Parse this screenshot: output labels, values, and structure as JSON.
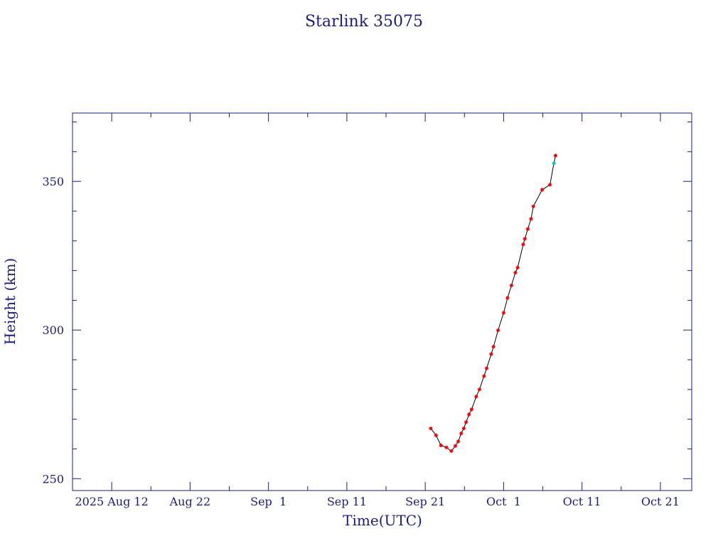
{
  "chart_data": {
    "type": "scatter",
    "title": "Starlink 35075",
    "xlabel": "Time(UTC)",
    "ylabel": "Height (km)",
    "xlim": [
      "2025-08-07",
      "2025-10-25"
    ],
    "ylim": [
      246,
      373
    ],
    "x_ticks": [
      {
        "date": "2025-08-12",
        "label": "2025 Aug 12"
      },
      {
        "date": "2025-08-22",
        "label": "Aug 22"
      },
      {
        "date": "2025-09-01",
        "label": "Sep  1"
      },
      {
        "date": "2025-09-11",
        "label": "Sep 11"
      },
      {
        "date": "2025-09-21",
        "label": "Sep 21"
      },
      {
        "date": "2025-10-01",
        "label": "Oct  1"
      },
      {
        "date": "2025-10-11",
        "label": "Oct 11"
      },
      {
        "date": "2025-10-21",
        "label": "Oct 21"
      }
    ],
    "y_ticks": [
      250,
      300,
      350
    ],
    "grid": false,
    "line_color": "#000000",
    "marker_color": "#ff0000",
    "highlight_color": "#00c8c8",
    "series": [
      {
        "points": [
          {
            "x": "2025-09-21T17:00",
            "y": 266.9
          },
          {
            "x": "2025-09-22T09:00",
            "y": 264.6
          },
          {
            "x": "2025-09-23T00:00",
            "y": 261.2
          },
          {
            "x": "2025-09-23T17:00",
            "y": 260.5
          },
          {
            "x": "2025-09-24T08:00",
            "y": 259.3
          },
          {
            "x": "2025-09-24T20:00",
            "y": 261.0
          },
          {
            "x": "2025-09-25T05:00",
            "y": 262.5
          },
          {
            "x": "2025-09-25T14:00",
            "y": 265.2
          },
          {
            "x": "2025-09-25T22:00",
            "y": 266.9
          },
          {
            "x": "2025-09-26T05:00",
            "y": 269.0
          },
          {
            "x": "2025-09-26T14:00",
            "y": 271.6
          },
          {
            "x": "2025-09-26T22:00",
            "y": 273.3
          },
          {
            "x": "2025-09-27T12:00",
            "y": 277.6
          },
          {
            "x": "2025-09-27T22:00",
            "y": 280.0
          },
          {
            "x": "2025-09-28T12:00",
            "y": 284.5
          },
          {
            "x": "2025-09-28T20:00",
            "y": 287.1
          },
          {
            "x": "2025-09-29T10:00",
            "y": 291.9
          },
          {
            "x": "2025-09-29T17:00",
            "y": 294.4
          },
          {
            "x": "2025-09-30T07:00",
            "y": 299.9
          },
          {
            "x": "2025-10-01T00:00",
            "y": 305.8
          },
          {
            "x": "2025-10-01T12:00",
            "y": 310.8
          },
          {
            "x": "2025-10-02T00:00",
            "y": 315.0
          },
          {
            "x": "2025-10-02T12:00",
            "y": 319.3
          },
          {
            "x": "2025-10-02T19:00",
            "y": 321.0
          },
          {
            "x": "2025-10-03T12:00",
            "y": 328.8
          },
          {
            "x": "2025-10-03T17:00",
            "y": 330.7
          },
          {
            "x": "2025-10-04T02:00",
            "y": 334.0
          },
          {
            "x": "2025-10-04T12:00",
            "y": 337.4
          },
          {
            "x": "2025-10-04T19:00",
            "y": 341.6
          },
          {
            "x": "2025-10-05T22:00",
            "y": 347.2
          },
          {
            "x": "2025-10-06T22:00",
            "y": 348.9
          },
          {
            "x": "2025-10-07T10:00",
            "y": 356.1,
            "highlight": true
          },
          {
            "x": "2025-10-07T15:00",
            "y": 358.7
          }
        ]
      }
    ]
  }
}
